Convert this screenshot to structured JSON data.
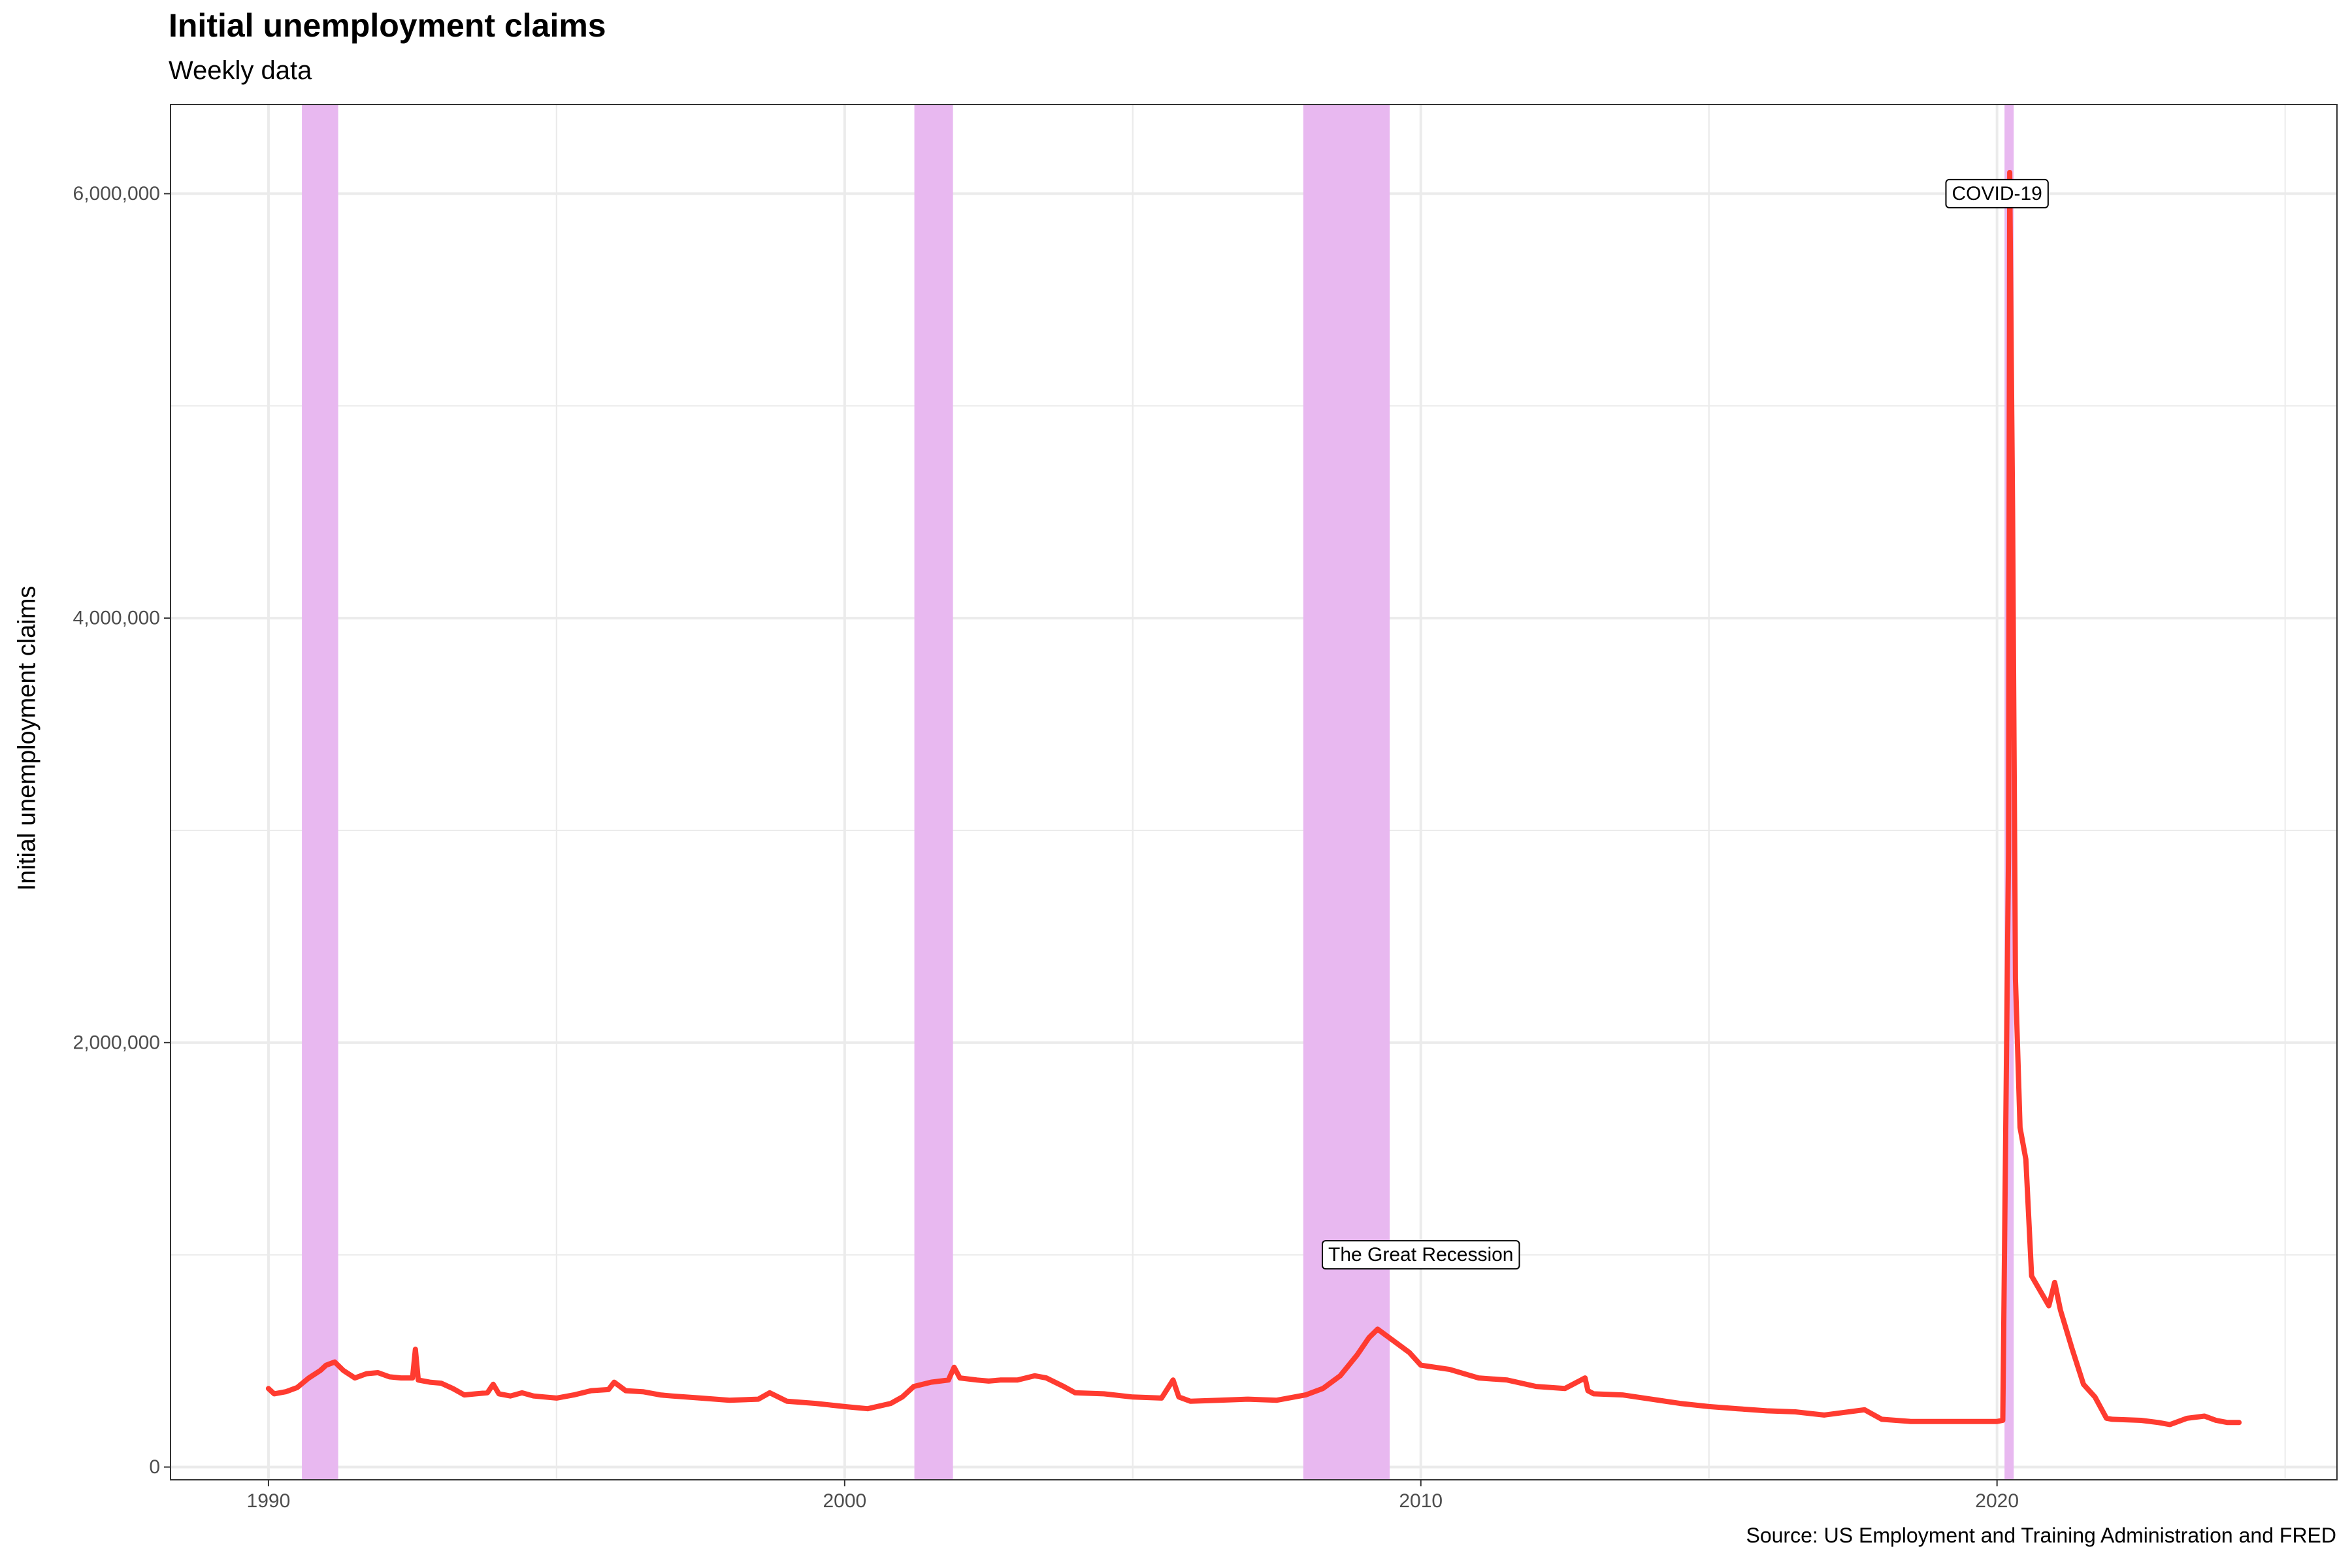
{
  "colors": {
    "line": "#ff3b30",
    "recession": "#e8b8f0",
    "grid": "#ebebeb",
    "panel_border": "#333333"
  },
  "chart_data": {
    "type": "line",
    "title": "Initial unemployment claims",
    "subtitle": "Weekly data",
    "caption": "Source: US Employment and Training Administration and FRED",
    "xlabel": "",
    "ylabel": "Initial unemployment claims",
    "xlim": [
      1988.3,
      2025.9
    ],
    "ylim": [
      -60000,
      6420000
    ],
    "x_ticks": [
      1990,
      2000,
      2010,
      2020
    ],
    "x_tick_labels": [
      "1990",
      "2000",
      "2010",
      "2020"
    ],
    "y_ticks": [
      0,
      2000000,
      4000000,
      6000000
    ],
    "y_tick_labels": [
      "0",
      "2,000,000",
      "4,000,000",
      "6,000,000"
    ],
    "grid": true,
    "recessions": [
      {
        "start": 1990.58,
        "end": 1991.21
      },
      {
        "start": 2001.21,
        "end": 2001.88
      },
      {
        "start": 2007.96,
        "end": 2009.46
      },
      {
        "start": 2020.13,
        "end": 2020.29
      }
    ],
    "annotations": [
      {
        "text": "The Great Recession",
        "x": 2010.0,
        "y": 1000000
      },
      {
        "text": "COVID-19",
        "x": 2020.0,
        "y": 6000000
      }
    ],
    "series": [
      {
        "values": [
          [
            1990.0,
            370000
          ],
          [
            1990.1,
            345000
          ],
          [
            1990.3,
            355000
          ],
          [
            1990.5,
            375000
          ],
          [
            1990.7,
            420000
          ],
          [
            1990.9,
            455000
          ],
          [
            1991.0,
            480000
          ],
          [
            1991.15,
            495000
          ],
          [
            1991.3,
            455000
          ],
          [
            1991.5,
            420000
          ],
          [
            1991.7,
            440000
          ],
          [
            1991.9,
            445000
          ],
          [
            1992.1,
            425000
          ],
          [
            1992.3,
            420000
          ],
          [
            1992.5,
            420000
          ],
          [
            1992.55,
            555000
          ],
          [
            1992.6,
            410000
          ],
          [
            1992.8,
            400000
          ],
          [
            1993.0,
            395000
          ],
          [
            1993.2,
            370000
          ],
          [
            1993.4,
            340000
          ],
          [
            1993.6,
            345000
          ],
          [
            1993.8,
            350000
          ],
          [
            1993.9,
            390000
          ],
          [
            1994.0,
            345000
          ],
          [
            1994.2,
            335000
          ],
          [
            1994.4,
            350000
          ],
          [
            1994.6,
            335000
          ],
          [
            1994.8,
            330000
          ],
          [
            1995.0,
            325000
          ],
          [
            1995.3,
            340000
          ],
          [
            1995.6,
            360000
          ],
          [
            1995.9,
            365000
          ],
          [
            1996.0,
            400000
          ],
          [
            1996.2,
            360000
          ],
          [
            1996.5,
            355000
          ],
          [
            1996.8,
            340000
          ],
          [
            1997.0,
            335000
          ],
          [
            1997.5,
            325000
          ],
          [
            1998.0,
            315000
          ],
          [
            1998.5,
            320000
          ],
          [
            1998.7,
            350000
          ],
          [
            1999.0,
            310000
          ],
          [
            1999.5,
            300000
          ],
          [
            2000.0,
            285000
          ],
          [
            2000.4,
            275000
          ],
          [
            2000.8,
            300000
          ],
          [
            2001.0,
            330000
          ],
          [
            2001.2,
            380000
          ],
          [
            2001.5,
            400000
          ],
          [
            2001.8,
            410000
          ],
          [
            2001.9,
            470000
          ],
          [
            2002.0,
            420000
          ],
          [
            2002.3,
            410000
          ],
          [
            2002.5,
            405000
          ],
          [
            2002.7,
            410000
          ],
          [
            2003.0,
            410000
          ],
          [
            2003.3,
            430000
          ],
          [
            2003.5,
            420000
          ],
          [
            2003.8,
            380000
          ],
          [
            2004.0,
            350000
          ],
          [
            2004.5,
            345000
          ],
          [
            2005.0,
            330000
          ],
          [
            2005.5,
            325000
          ],
          [
            2005.7,
            410000
          ],
          [
            2005.8,
            330000
          ],
          [
            2006.0,
            310000
          ],
          [
            2006.5,
            315000
          ],
          [
            2007.0,
            320000
          ],
          [
            2007.5,
            315000
          ],
          [
            2008.0,
            340000
          ],
          [
            2008.3,
            370000
          ],
          [
            2008.6,
            430000
          ],
          [
            2008.9,
            530000
          ],
          [
            2009.1,
            610000
          ],
          [
            2009.25,
            650000
          ],
          [
            2009.5,
            600000
          ],
          [
            2009.8,
            540000
          ],
          [
            2010.0,
            480000
          ],
          [
            2010.5,
            460000
          ],
          [
            2011.0,
            420000
          ],
          [
            2011.5,
            410000
          ],
          [
            2012.0,
            380000
          ],
          [
            2012.5,
            370000
          ],
          [
            2012.85,
            420000
          ],
          [
            2012.9,
            360000
          ],
          [
            2013.0,
            345000
          ],
          [
            2013.5,
            340000
          ],
          [
            2014.0,
            320000
          ],
          [
            2014.5,
            300000
          ],
          [
            2015.0,
            285000
          ],
          [
            2015.5,
            275000
          ],
          [
            2016.0,
            265000
          ],
          [
            2016.5,
            260000
          ],
          [
            2017.0,
            245000
          ],
          [
            2017.7,
            270000
          ],
          [
            2018.0,
            225000
          ],
          [
            2018.5,
            215000
          ],
          [
            2019.0,
            215000
          ],
          [
            2019.5,
            215000
          ],
          [
            2020.0,
            215000
          ],
          [
            2020.1,
            220000
          ],
          [
            2020.2,
            2900000
          ],
          [
            2020.22,
            6100000
          ],
          [
            2020.27,
            4500000
          ],
          [
            2020.32,
            2300000
          ],
          [
            2020.4,
            1600000
          ],
          [
            2020.5,
            1450000
          ],
          [
            2020.6,
            900000
          ],
          [
            2020.75,
            830000
          ],
          [
            2020.9,
            760000
          ],
          [
            2021.0,
            870000
          ],
          [
            2021.1,
            740000
          ],
          [
            2021.3,
            560000
          ],
          [
            2021.5,
            390000
          ],
          [
            2021.7,
            330000
          ],
          [
            2021.9,
            230000
          ],
          [
            2022.0,
            225000
          ],
          [
            2022.5,
            220000
          ],
          [
            2022.8,
            210000
          ],
          [
            2023.0,
            200000
          ],
          [
            2023.3,
            230000
          ],
          [
            2023.6,
            240000
          ],
          [
            2023.8,
            220000
          ],
          [
            2024.0,
            210000
          ],
          [
            2024.2,
            210000
          ]
        ]
      }
    ]
  }
}
